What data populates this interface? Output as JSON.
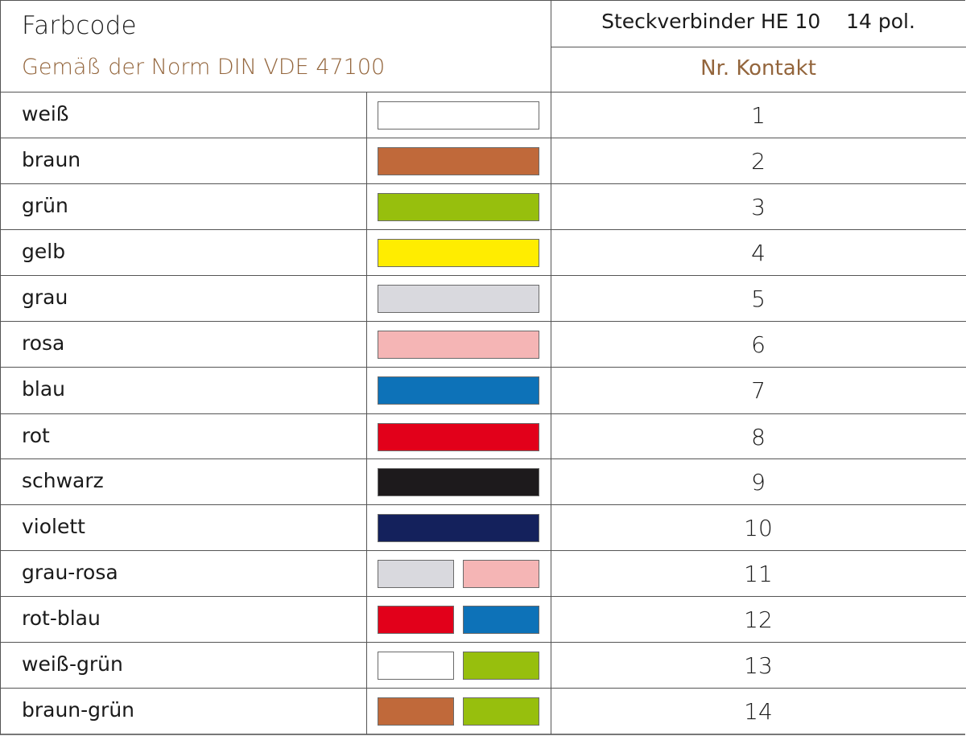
{
  "header": {
    "title": "Farbcode",
    "subtitle": "Gemäß der Norm DIN VDE 47100",
    "connector": "Steckverbinder HE 10    14 pol.",
    "contact_header": "Nr. Kontakt"
  },
  "rows": [
    {
      "name": "weiß",
      "colors": [
        "#ffffff"
      ],
      "contact": "1"
    },
    {
      "name": "braun",
      "colors": [
        "#c0693a"
      ],
      "contact": "2"
    },
    {
      "name": "grün",
      "colors": [
        "#97bf0d"
      ],
      "contact": "3"
    },
    {
      "name": "gelb",
      "colors": [
        "#ffed00"
      ],
      "contact": "4"
    },
    {
      "name": "grau",
      "colors": [
        "#d9d9de"
      ],
      "contact": "5"
    },
    {
      "name": "rosa",
      "colors": [
        "#f5b5b5"
      ],
      "contact": "6"
    },
    {
      "name": "blau",
      "colors": [
        "#0d72b8"
      ],
      "contact": "7"
    },
    {
      "name": "rot",
      "colors": [
        "#e2001a"
      ],
      "contact": "8"
    },
    {
      "name": "schwarz",
      "colors": [
        "#1d1a1c"
      ],
      "contact": "9"
    },
    {
      "name": "violett",
      "colors": [
        "#14215c"
      ],
      "contact": "10"
    },
    {
      "name": "grau-rosa",
      "colors": [
        "#d9d9de",
        "#f5b5b5"
      ],
      "contact": "11"
    },
    {
      "name": "rot-blau",
      "colors": [
        "#e2001a",
        "#0d72b8"
      ],
      "contact": "12"
    },
    {
      "name": "weiß-grün",
      "colors": [
        "#ffffff",
        "#97bf0d"
      ],
      "contact": "13"
    },
    {
      "name": "braun-grün",
      "colors": [
        "#c0693a",
        "#97bf0d"
      ],
      "contact": "14"
    }
  ]
}
